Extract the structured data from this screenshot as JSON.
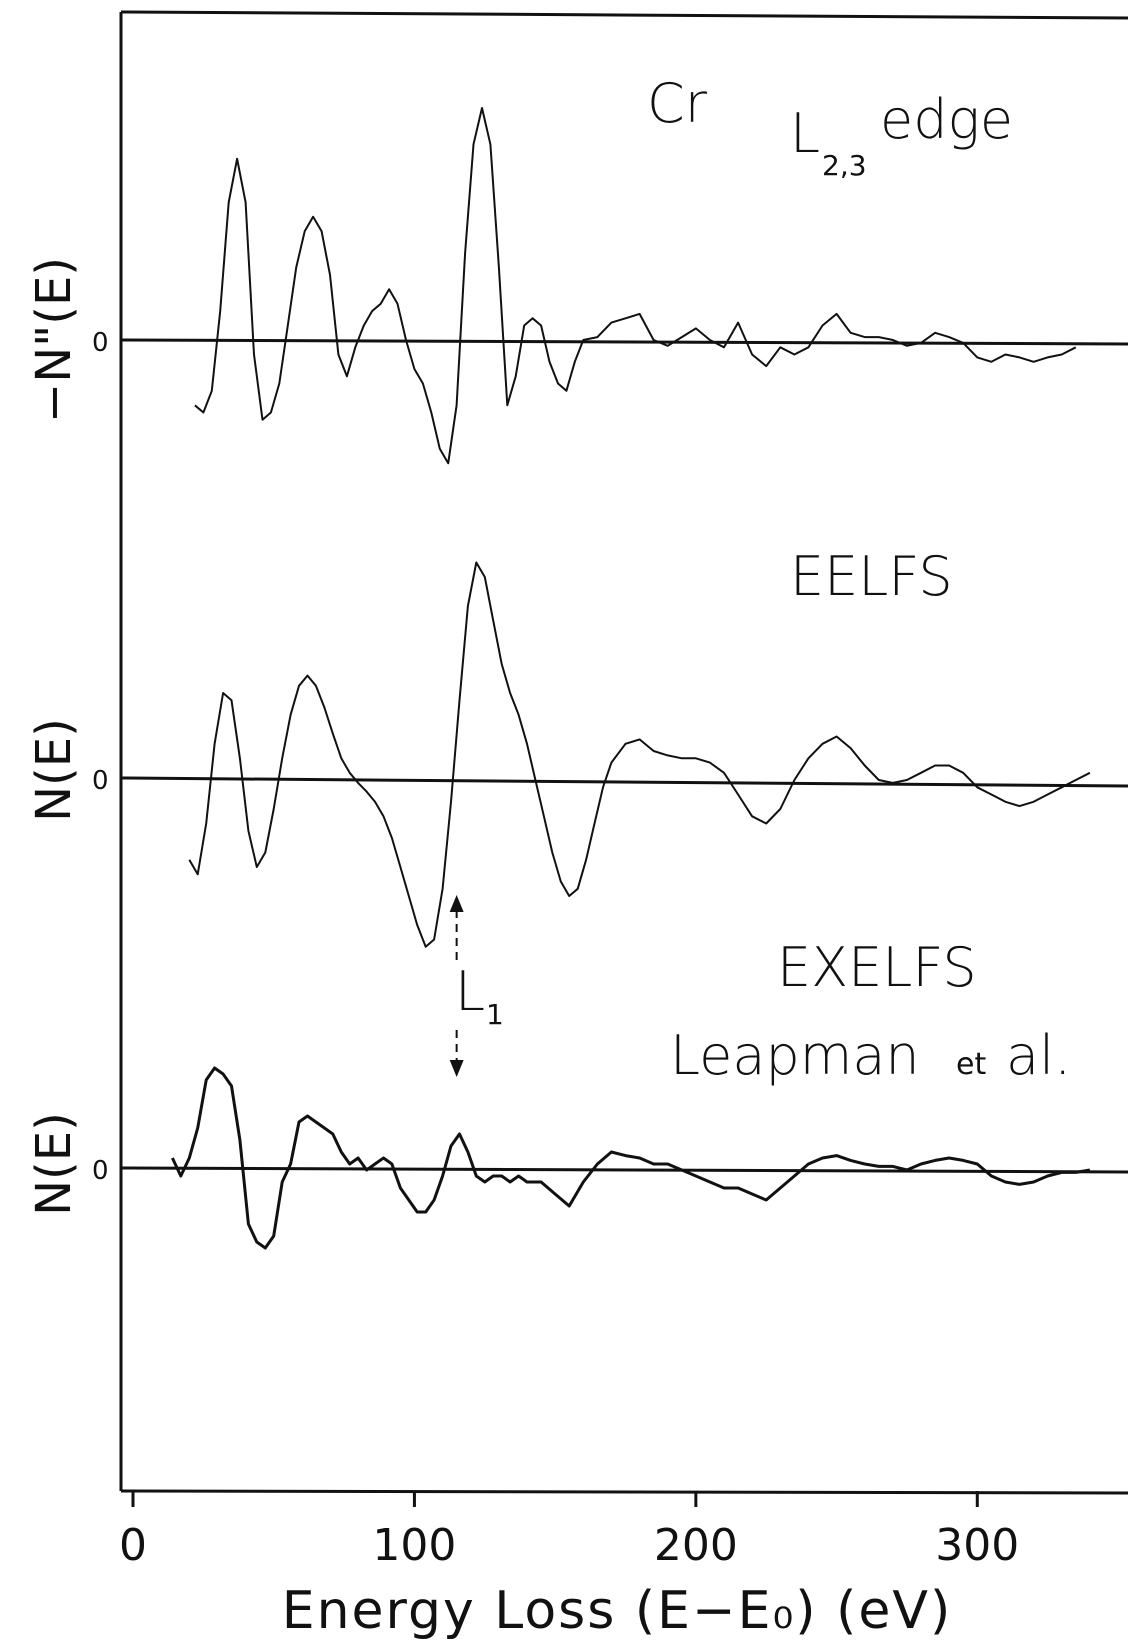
{
  "chart_data": {
    "type": "line",
    "xlabel": "Energy Loss (E−E₀) (eV)",
    "xlim": [
      0,
      350
    ],
    "xticks": [
      0,
      100,
      200,
      300
    ],
    "grid": false,
    "panels": [
      {
        "ylabel": "−N\"(E)",
        "zero_label": "0",
        "title_main": "Cr",
        "title_edge": "L",
        "title_sub": "2,3",
        "title_suffix": "edge",
        "series": [
          {
            "x": [
              22,
              25,
              28,
              31,
              34,
              37,
              40,
              43,
              46,
              49,
              52,
              55,
              58,
              61,
              64,
              67,
              70,
              73,
              76,
              79,
              82,
              85,
              88,
              91,
              94,
              97,
              100,
              103,
              106,
              109,
              112,
              115,
              118,
              121,
              124,
              127,
              130,
              133,
              136,
              139,
              142,
              145,
              148,
              151,
              154,
              157,
              160,
              165,
              170,
              175,
              180,
              185,
              190,
              195,
              200,
              205,
              210,
              215,
              220,
              225,
              230,
              235,
              240,
              245,
              250,
              255,
              260,
              265,
              270,
              275,
              280,
              285,
              290,
              295,
              300,
              305,
              310,
              315,
              320,
              325,
              330,
              335
            ],
            "y": [
              -0.45,
              -0.5,
              -0.35,
              0.2,
              0.95,
              1.25,
              0.95,
              -0.1,
              -0.55,
              -0.5,
              -0.3,
              0.1,
              0.5,
              0.75,
              0.85,
              0.75,
              0.45,
              -0.1,
              -0.25,
              -0.05,
              0.1,
              0.2,
              0.25,
              0.35,
              0.25,
              0.0,
              -0.2,
              -0.3,
              -0.5,
              -0.75,
              -0.85,
              -0.45,
              0.6,
              1.35,
              1.6,
              1.35,
              0.5,
              -0.45,
              -0.25,
              0.1,
              0.15,
              0.1,
              -0.15,
              -0.3,
              -0.35,
              -0.15,
              0.0,
              0.02,
              0.12,
              0.15,
              0.18,
              0.0,
              -0.04,
              0.02,
              0.08,
              0.0,
              -0.05,
              0.12,
              -0.1,
              -0.18,
              -0.05,
              -0.1,
              -0.05,
              0.1,
              0.18,
              0.05,
              0.02,
              0.02,
              0.0,
              -0.04,
              -0.02,
              0.05,
              0.02,
              -0.02,
              -0.12,
              -0.15,
              -0.1,
              -0.12,
              -0.15,
              -0.12,
              -0.1,
              -0.05
            ]
          }
        ]
      },
      {
        "ylabel": "N(E)",
        "zero_label": "0",
        "annotation": "EELFS",
        "series": [
          {
            "x": [
              20,
              23,
              26,
              29,
              32,
              35,
              38,
              41,
              44,
              47,
              50,
              53,
              56,
              59,
              62,
              65,
              68,
              71,
              74,
              77,
              80,
              83,
              86,
              89,
              92,
              95,
              98,
              101,
              104,
              107,
              110,
              113,
              116,
              119,
              122,
              125,
              128,
              131,
              134,
              137,
              140,
              143,
              146,
              149,
              152,
              155,
              158,
              161,
              164,
              167,
              170,
              175,
              180,
              185,
              190,
              195,
              200,
              205,
              210,
              215,
              220,
              225,
              230,
              235,
              240,
              245,
              250,
              255,
              260,
              265,
              270,
              275,
              280,
              285,
              290,
              295,
              300,
              305,
              310,
              315,
              320,
              325,
              330,
              335,
              340
            ],
            "y": [
              -0.55,
              -0.65,
              -0.3,
              0.25,
              0.6,
              0.55,
              0.15,
              -0.35,
              -0.6,
              -0.5,
              -0.2,
              0.15,
              0.45,
              0.65,
              0.72,
              0.65,
              0.5,
              0.32,
              0.15,
              0.05,
              -0.02,
              -0.08,
              -0.15,
              -0.25,
              -0.4,
              -0.6,
              -0.8,
              -1.0,
              -1.15,
              -1.1,
              -0.75,
              -0.15,
              0.55,
              1.2,
              1.5,
              1.4,
              1.1,
              0.8,
              0.6,
              0.45,
              0.25,
              0.0,
              -0.25,
              -0.5,
              -0.7,
              -0.8,
              -0.75,
              -0.55,
              -0.3,
              -0.05,
              0.12,
              0.25,
              0.28,
              0.2,
              0.17,
              0.15,
              0.15,
              0.12,
              0.05,
              -0.1,
              -0.25,
              -0.3,
              -0.2,
              0.0,
              0.15,
              0.25,
              0.3,
              0.22,
              0.1,
              0.0,
              -0.02,
              0.0,
              0.05,
              0.1,
              0.1,
              0.05,
              -0.05,
              -0.1,
              -0.15,
              -0.18,
              -0.15,
              -0.1,
              -0.05,
              0.0,
              0.05
            ]
          }
        ]
      },
      {
        "ylabel": "N(E)",
        "zero_label": "0",
        "annotation_1": "EXELFS",
        "annotation_2_a": "Leapman",
        "annotation_2_b": "et",
        "annotation_2_c": "al.",
        "marker_label": "L",
        "marker_sub": "1",
        "marker_x": 115,
        "series": [
          {
            "x": [
              14,
              17,
              20,
              23,
              26,
              29,
              32,
              35,
              38,
              41,
              44,
              47,
              50,
              53,
              56,
              59,
              62,
              65,
              68,
              71,
              74,
              77,
              80,
              83,
              86,
              89,
              92,
              95,
              98,
              101,
              104,
              107,
              110,
              113,
              116,
              119,
              122,
              125,
              128,
              131,
              134,
              137,
              140,
              145,
              150,
              155,
              160,
              165,
              170,
              175,
              180,
              185,
              190,
              195,
              200,
              205,
              210,
              215,
              220,
              225,
              230,
              235,
              240,
              245,
              250,
              255,
              260,
              265,
              270,
              275,
              280,
              285,
              290,
              295,
              300,
              305,
              310,
              315,
              320,
              325,
              330,
              335,
              340
            ],
            "y": [
              0.1,
              -0.05,
              0.1,
              0.35,
              0.75,
              0.85,
              0.8,
              0.7,
              0.25,
              -0.45,
              -0.6,
              -0.65,
              -0.55,
              -0.1,
              0.05,
              0.4,
              0.45,
              0.4,
              0.35,
              0.3,
              0.15,
              0.05,
              0.1,
              0.0,
              0.05,
              0.1,
              0.05,
              -0.15,
              -0.25,
              -0.35,
              -0.35,
              -0.25,
              -0.05,
              0.2,
              0.3,
              0.15,
              -0.05,
              -0.1,
              -0.05,
              -0.05,
              -0.1,
              -0.05,
              -0.1,
              -0.1,
              -0.2,
              -0.3,
              -0.1,
              0.05,
              0.15,
              0.12,
              0.1,
              0.05,
              0.05,
              0.0,
              -0.05,
              -0.1,
              -0.15,
              -0.15,
              -0.2,
              -0.25,
              -0.15,
              -0.05,
              0.05,
              0.1,
              0.12,
              0.08,
              0.05,
              0.03,
              0.03,
              0.0,
              0.05,
              0.08,
              0.1,
              0.08,
              0.05,
              -0.05,
              -0.1,
              -0.12,
              -0.1,
              -0.05,
              -0.02,
              -0.02,
              0.0
            ]
          }
        ]
      }
    ]
  }
}
